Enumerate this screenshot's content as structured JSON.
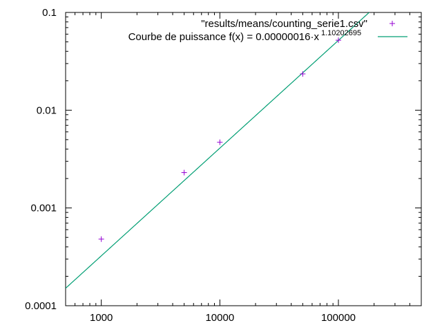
{
  "chart_data": {
    "type": "scatter",
    "x_scale": "log",
    "y_scale": "log",
    "xlim": [
      500,
      500000
    ],
    "ylim": [
      0.0001,
      0.1
    ],
    "grid": false,
    "legend_position": "top-right",
    "x_ticks": [
      {
        "value": 1000,
        "label": "1000"
      },
      {
        "value": 10000,
        "label": "10000"
      },
      {
        "value": 100000,
        "label": "100000"
      }
    ],
    "y_ticks": [
      {
        "value": 0.0001,
        "label": "0.0001"
      },
      {
        "value": 0.001,
        "label": "0.001"
      },
      {
        "value": 0.01,
        "label": "0.01"
      },
      {
        "value": 0.1,
        "label": "0.1"
      }
    ],
    "series": [
      {
        "name": "\"results/means/counting_serie1.csv\"",
        "kind": "points",
        "marker": "+",
        "color": "#9400d3",
        "x": [
          1000,
          5000,
          10000,
          50000,
          100000
        ],
        "y": [
          0.00048,
          0.0023,
          0.0047,
          0.0235,
          0.052
        ]
      },
      {
        "name": "Courbe de puissance f(x) = 0.00000016·x",
        "name_exponent": "1.10202695",
        "kind": "line",
        "color": "#009e73",
        "coefficient": 1.6e-07,
        "exponent": 1.10202695
      }
    ]
  }
}
